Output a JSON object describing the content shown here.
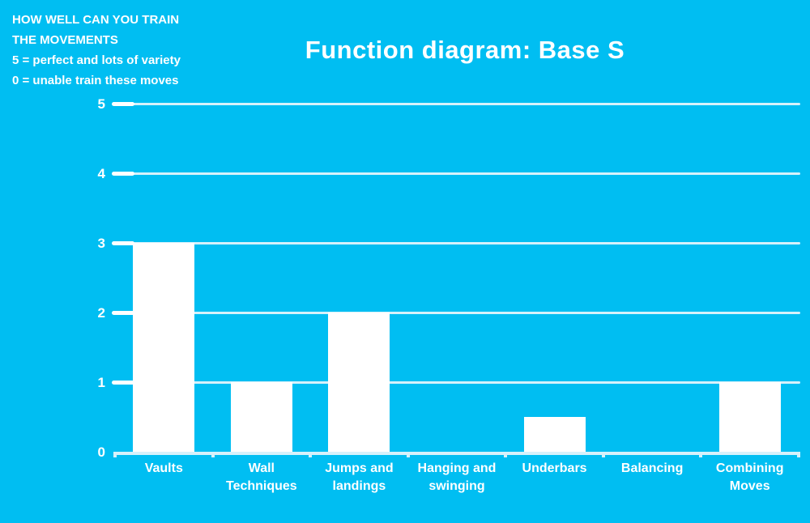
{
  "page": {
    "background_color": "#00BEF2",
    "text_color": "#FFFFFF"
  },
  "annotation": {
    "lines": [
      "HOW WELL CAN YOU TRAIN",
      "THE MOVEMENTS",
      "5 = perfect and lots of variety",
      "0 = unable train these moves"
    ]
  },
  "chart_data": {
    "type": "bar",
    "title": "Function diagram: Base S",
    "categories": [
      "Vaults",
      "Wall\nTechniques",
      "Jumps and\nlandings",
      "Hanging and\nswinging",
      "Underbars",
      "Balancing",
      "Combining\nMoves"
    ],
    "values": [
      3,
      1,
      2,
      0,
      0.5,
      0,
      1
    ],
    "xlabel": "",
    "ylabel": "",
    "ylim": [
      0,
      5
    ],
    "yticks": [
      0,
      1,
      2,
      3,
      4,
      5
    ],
    "grid": true,
    "legend_position": "none",
    "bar_color": "#FFFFFF",
    "gridline_color": "#D6F1FB",
    "background_color": "#00BEF2"
  }
}
